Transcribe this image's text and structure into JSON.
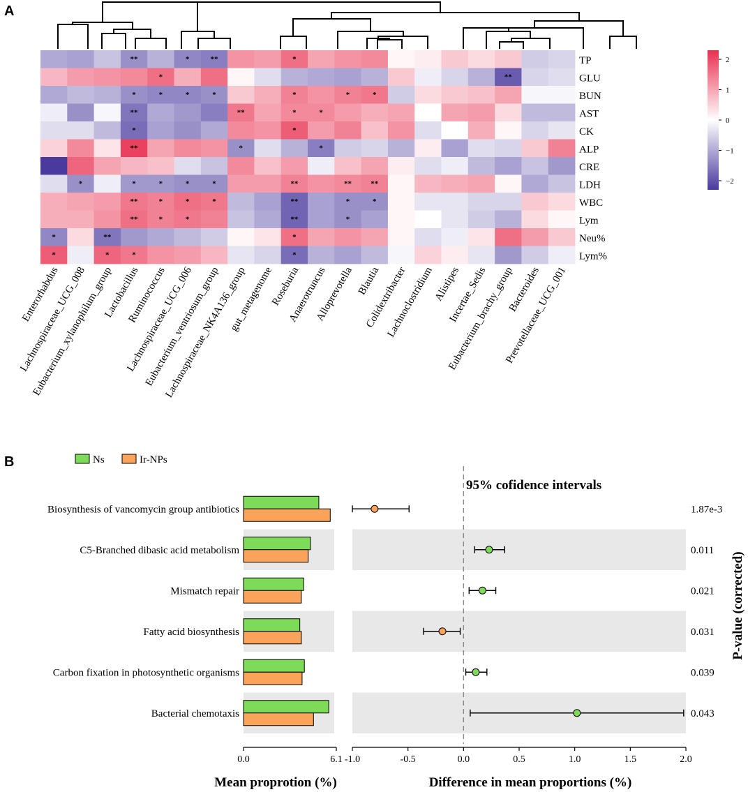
{
  "panels": {
    "a_label": "A",
    "b_label": "B"
  },
  "chart_data": [
    {
      "type": "heatmap",
      "panel": "A",
      "rows": [
        "TP",
        "GLU",
        "BUN",
        "AST",
        "CK",
        "ALP",
        "CRE",
        "LDH",
        "WBC",
        "Lym",
        "Neu%",
        "Lym%"
      ],
      "columns": [
        "Enterorhabdus",
        "Lachnospiraceae_UCG_008",
        "Eubacterium_xylanophilum_group",
        "Lactobacillus",
        "Ruminococcus",
        "Lachnospiraceae_UCG_006",
        "Eubacterium_ventriosum_group",
        "Lachnospiraceae_NK4A136_group",
        "gut_metagenome",
        "Roseburia",
        "Anaerotruncus",
        "Alloprevotella",
        "Blautia",
        "Colidextribacter",
        "Lachnoclostridium",
        "Alistipes",
        "Incertae_Sedis",
        "Eubacterium_brachy_group",
        "Bacteroides",
        "Prevotellaceae_UCG_001"
      ],
      "values": [
        [
          -1.0,
          -1.1,
          -0.7,
          -1.3,
          -0.9,
          -1.4,
          -1.5,
          1.2,
          1.1,
          1.6,
          1.0,
          1.2,
          1.3,
          0.1,
          0.2,
          0.6,
          0.4,
          0.6,
          -0.6,
          -0.5
        ],
        [
          0.8,
          1.1,
          1.2,
          1.3,
          1.6,
          0.9,
          1.6,
          0.1,
          -0.4,
          -0.9,
          -1.0,
          -1.1,
          -0.9,
          0.6,
          -0.2,
          -0.5,
          -0.9,
          -1.9,
          -0.5,
          -0.4
        ],
        [
          -1.0,
          -0.8,
          -0.9,
          -1.3,
          -1.4,
          -1.4,
          -1.3,
          0.6,
          0.9,
          1.4,
          1.2,
          1.4,
          1.5,
          -0.6,
          0.4,
          0.6,
          0.7,
          1.0,
          -0.1,
          -0.1
        ],
        [
          -0.2,
          -1.3,
          -0.1,
          -1.6,
          -1.0,
          -1.2,
          -1.5,
          1.5,
          1.0,
          1.3,
          1.3,
          1.1,
          0.9,
          1.0,
          0.0,
          1.0,
          1.1,
          0.4,
          -0.8,
          -0.8
        ],
        [
          -0.4,
          -0.4,
          -0.8,
          -1.7,
          -1.1,
          -1.3,
          -1.0,
          1.3,
          1.2,
          1.8,
          1.1,
          1.4,
          0.7,
          1.2,
          -0.4,
          0.0,
          0.9,
          0.1,
          -0.5,
          -0.3
        ],
        [
          0.5,
          1.3,
          0.3,
          2.1,
          1.0,
          1.3,
          1.2,
          -1.3,
          -0.4,
          -0.9,
          -1.5,
          -0.6,
          -0.5,
          -0.9,
          0.2,
          -1.1,
          -0.4,
          -0.5,
          0.6,
          1.4
        ],
        [
          -2.3,
          1.7,
          1.0,
          0.8,
          0.7,
          -0.4,
          -0.7,
          1.3,
          0.7,
          1.1,
          -0.2,
          0.7,
          1.0,
          0.2,
          -0.4,
          -0.2,
          -0.8,
          -1.1,
          -0.7,
          -1.2
        ],
        [
          -0.4,
          -1.3,
          -0.2,
          -1.2,
          -1.2,
          -1.3,
          -1.3,
          1.1,
          1.1,
          1.4,
          1.2,
          1.3,
          1.4,
          0.1,
          0.8,
          0.9,
          1.0,
          0.1,
          -1.0,
          -0.7
        ],
        [
          0.9,
          1.0,
          1.1,
          1.5,
          1.4,
          1.6,
          1.5,
          -0.8,
          -1.1,
          -1.8,
          -1.1,
          -1.3,
          -1.3,
          0.1,
          -0.3,
          -0.3,
          -0.5,
          -0.5,
          0.6,
          0.4
        ],
        [
          0.9,
          0.9,
          1.2,
          1.6,
          1.4,
          1.5,
          1.4,
          -0.7,
          -1.0,
          -1.8,
          -1.1,
          -1.3,
          -1.1,
          0.1,
          0.0,
          -0.3,
          -0.6,
          -0.9,
          0.4,
          0.1
        ],
        [
          -1.4,
          0.4,
          -1.6,
          -1.2,
          -1.0,
          -0.8,
          -0.6,
          0.1,
          0.3,
          1.6,
          1.0,
          1.2,
          1.0,
          0.1,
          -0.4,
          -0.2,
          0.3,
          1.6,
          1.1,
          0.6
        ],
        [
          1.8,
          -0.2,
          1.7,
          1.5,
          1.2,
          1.1,
          0.8,
          -0.3,
          -0.5,
          -1.7,
          -0.9,
          -1.1,
          -0.8,
          -0.1,
          0.5,
          0.2,
          -0.3,
          -1.2,
          -0.6,
          -0.2
        ]
      ],
      "significance": [
        [
          "",
          "",
          "",
          "**",
          "",
          "*",
          "**",
          "",
          "",
          "*",
          "",
          "",
          "",
          "",
          "",
          "",
          "",
          "",
          "",
          ""
        ],
        [
          "",
          "",
          "",
          "",
          "*",
          "",
          "",
          "",
          "",
          "",
          "",
          "",
          "",
          "",
          "",
          "",
          "",
          "**",
          "",
          ""
        ],
        [
          "",
          "",
          "",
          "*",
          "*",
          "*",
          "*",
          "",
          "",
          "*",
          "",
          "*",
          "*",
          "",
          "",
          "",
          "",
          "",
          "",
          ""
        ],
        [
          "",
          "",
          "",
          "**",
          "",
          "",
          "",
          "**",
          "",
          "*",
          "*",
          "",
          "",
          "",
          "",
          "",
          "",
          "",
          "",
          ""
        ],
        [
          "",
          "",
          "",
          "*",
          "",
          "",
          "",
          "",
          "",
          "*",
          "",
          "",
          "",
          "",
          "",
          "",
          "",
          "",
          "",
          ""
        ],
        [
          "",
          "",
          "",
          "**",
          "",
          "",
          "",
          "*",
          "",
          "",
          "*",
          "",
          "",
          "",
          "",
          "",
          "",
          "",
          "",
          ""
        ],
        [
          "",
          "",
          "",
          "",
          "",
          "",
          "",
          "",
          "",
          "",
          "",
          "",
          "",
          "",
          "",
          "",
          "",
          "",
          "",
          ""
        ],
        [
          "",
          "*",
          "",
          "*",
          "*",
          "*",
          "*",
          "",
          "",
          "**",
          "",
          "**",
          "**",
          "",
          "",
          "",
          "",
          "",
          "",
          ""
        ],
        [
          "",
          "",
          "",
          "**",
          "*",
          "*",
          "*",
          "",
          "",
          "**",
          "",
          "*",
          "*",
          "",
          "",
          "",
          "",
          "",
          "",
          ""
        ],
        [
          "",
          "",
          "",
          "**",
          "*",
          "*",
          "",
          "",
          "",
          "**",
          "",
          "*",
          "",
          "",
          "",
          "",
          "",
          "",
          "",
          ""
        ],
        [
          "*",
          "",
          "**",
          "",
          "",
          "",
          "",
          "",
          "",
          "*",
          "",
          "",
          "",
          "",
          "",
          "",
          "",
          "",
          "",
          ""
        ],
        [
          "*",
          "",
          "*",
          "*",
          "",
          "",
          "",
          "",
          "",
          "*",
          "",
          "",
          "",
          "",
          "",
          "",
          "",
          "",
          "",
          ""
        ]
      ],
      "colorbar": {
        "min": -2.3,
        "max": 2.3,
        "ticks": [
          "2",
          "1",
          "0",
          "−1",
          "−2"
        ],
        "tick_values": [
          2,
          1,
          0,
          -1,
          -2
        ]
      },
      "colors": {
        "low": "#4a3a9e",
        "mid": "#ffffff",
        "high": "#e8304f"
      }
    },
    {
      "type": "bar",
      "panel": "B-left",
      "categories": [
        "Biosynthesis of vancomycin group antibiotics",
        "C5-Branched dibasic acid metabolism",
        "Mismatch repair",
        "Fatty acid biosynthesis",
        "Carbon fixation in photosynthetic organisms",
        "Bacterial chemotaxis"
      ],
      "series": [
        {
          "name": "Ns",
          "color": "#7ddb58",
          "values": [
            4.95,
            4.4,
            3.95,
            3.7,
            4.0,
            5.6
          ]
        },
        {
          "name": "Ir-NPs",
          "color": "#f9a35b",
          "values": [
            5.7,
            4.25,
            3.8,
            3.8,
            3.85,
            4.6
          ]
        }
      ],
      "xlim": [
        0,
        6.1
      ],
      "xticks": [
        "0.0",
        "6.1"
      ],
      "xlabel": "Mean proprotion (%)"
    },
    {
      "type": "scatter",
      "panel": "B-right",
      "title": "95% cofidence intervals",
      "points": [
        {
          "estimate": -0.8,
          "ci": [
            -1.0,
            -0.49
          ],
          "group": "Ir-NPs"
        },
        {
          "estimate": 0.23,
          "ci": [
            0.1,
            0.37
          ],
          "group": "Ns"
        },
        {
          "estimate": 0.17,
          "ci": [
            0.05,
            0.29
          ],
          "group": "Ns"
        },
        {
          "estimate": -0.19,
          "ci": [
            -0.36,
            -0.03
          ],
          "group": "Ir-NPs"
        },
        {
          "estimate": 0.11,
          "ci": [
            0.02,
            0.21
          ],
          "group": "Ns"
        },
        {
          "estimate": 1.02,
          "ci": [
            0.06,
            1.98
          ],
          "group": "Ns"
        }
      ],
      "xlim": [
        -1.0,
        2.0
      ],
      "xticks": [
        "-1.0",
        "-0.5",
        "0.0",
        "0.5",
        "1.0",
        "1.5",
        "2.0"
      ],
      "xtick_values": [
        -1.0,
        -0.5,
        0.0,
        0.5,
        1.0,
        1.5,
        2.0
      ],
      "xlabel": "Difference in mean proportions (%)",
      "pvalues": [
        "1.87e-3",
        "0.011",
        "0.021",
        "0.031",
        "0.039",
        "0.043"
      ],
      "pvalue_label": "P-value (corrected)"
    }
  ],
  "legend": [
    {
      "name": "Ns",
      "color": "#7ddb58"
    },
    {
      "name": "Ir-NPs",
      "color": "#f9a35b"
    }
  ]
}
